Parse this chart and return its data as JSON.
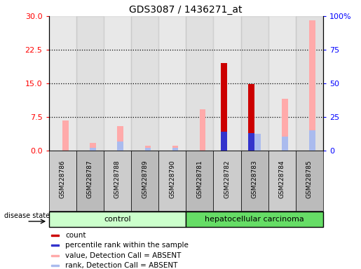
{
  "title": "GDS3087 / 1436271_at",
  "samples": [
    "GSM228786",
    "GSM228787",
    "GSM228788",
    "GSM228789",
    "GSM228790",
    "GSM228781",
    "GSM228782",
    "GSM228783",
    "GSM228784",
    "GSM228785"
  ],
  "count": [
    0,
    0,
    0,
    0,
    0,
    0,
    19.5,
    14.8,
    0,
    0
  ],
  "percentile_rank": [
    0,
    0,
    0,
    0,
    0,
    0,
    14.2,
    13.2,
    0,
    0
  ],
  "value_absent": [
    6.8,
    1.8,
    5.5,
    1.1,
    1.1,
    9.2,
    0,
    0,
    11.5,
    29.0
  ],
  "rank_absent": [
    0,
    2.2,
    6.6,
    2.0,
    2.2,
    0,
    0,
    12.4,
    10.5,
    15.0
  ],
  "ylim_left": [
    0,
    30
  ],
  "ylim_right": [
    0,
    100
  ],
  "yticks_left": [
    0,
    7.5,
    15,
    22.5,
    30
  ],
  "yticks_right": [
    0,
    25,
    50,
    75,
    100
  ],
  "color_count": "#cc0000",
  "color_percentile": "#3333cc",
  "color_value_absent": "#ffaaaa",
  "color_rank_absent": "#aabbee",
  "color_control_bg": "#ccffcc",
  "color_cancer_bg": "#66dd66",
  "bar_width": 0.22,
  "legend_items": [
    "count",
    "percentile rank within the sample",
    "value, Detection Call = ABSENT",
    "rank, Detection Call = ABSENT"
  ],
  "ctrl_n": 5,
  "cancer_n": 5
}
